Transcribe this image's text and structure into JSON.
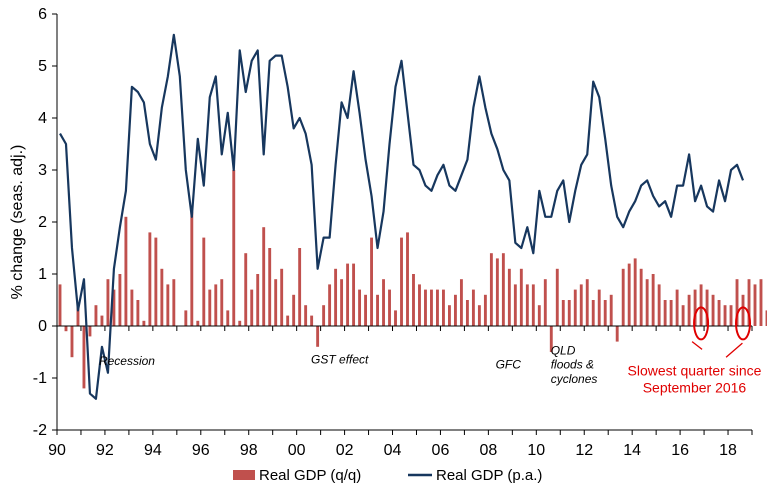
{
  "chart_data": {
    "type": "bar+line",
    "ylabel": "% change (seas. adj.)",
    "ylim": [
      -2,
      6
    ],
    "yticks": [
      "-2",
      "-1",
      "0",
      "1",
      "2",
      "3",
      "4",
      "5",
      "6"
    ],
    "xlim": [
      1990.0,
      2019.0
    ],
    "xticks": [
      {
        "label": "90",
        "x": 1990
      },
      {
        "label": "92",
        "x": 1992
      },
      {
        "label": "94",
        "x": 1994
      },
      {
        "label": "96",
        "x": 1996
      },
      {
        "label": "98",
        "x": 1998
      },
      {
        "label": "00",
        "x": 2000
      },
      {
        "label": "02",
        "x": 2002
      },
      {
        "label": "04",
        "x": 2004
      },
      {
        "label": "06",
        "x": 2006
      },
      {
        "label": "08",
        "x": 2008
      },
      {
        "label": "10",
        "x": 2010
      },
      {
        "label": "12",
        "x": 2012
      },
      {
        "label": "14",
        "x": 2014
      },
      {
        "label": "16",
        "x": 2016
      },
      {
        "label": "18",
        "x": 2018
      }
    ],
    "start_year": 1990,
    "grid": false,
    "legend_position": "bottom",
    "series": [
      {
        "name": "Real GDP (q/q)",
        "kind": "bar",
        "color": "#c0504d",
        "values": [
          0.8,
          -0.1,
          -0.6,
          0.4,
          -1.2,
          -0.2,
          0.4,
          0.2,
          0.9,
          0.7,
          1.0,
          2.1,
          0.7,
          0.5,
          0.1,
          1.8,
          1.7,
          1.1,
          0.8,
          0.9,
          0.0,
          0.3,
          2.2,
          0.1,
          1.7,
          0.7,
          0.8,
          0.9,
          0.3,
          3.0,
          0.1,
          1.4,
          0.7,
          1.0,
          1.9,
          1.5,
          0.9,
          1.1,
          0.2,
          0.6,
          1.5,
          0.4,
          0.2,
          -0.4,
          0.4,
          0.8,
          1.1,
          0.9,
          1.2,
          1.2,
          0.7,
          0.6,
          1.7,
          0.6,
          0.9,
          0.7,
          0.3,
          1.7,
          1.8,
          1.0,
          0.8,
          0.7,
          0.7,
          0.7,
          0.7,
          0.4,
          0.6,
          0.9,
          0.5,
          0.7,
          0.4,
          0.6,
          1.4,
          1.3,
          1.4,
          1.1,
          0.8,
          1.1,
          0.8,
          0.8,
          0.4,
          0.9,
          -0.5,
          1.1,
          0.5,
          0.5,
          0.7,
          0.8,
          0.9,
          0.5,
          0.7,
          0.5,
          0.6,
          -0.3,
          1.1,
          1.2,
          1.3,
          1.1,
          0.9,
          1.0,
          0.8,
          0.5,
          0.5,
          0.7,
          0.4,
          0.6,
          0.7,
          0.8,
          0.7,
          0.6,
          0.5,
          0.4,
          0.4,
          0.9,
          0.6,
          0.9,
          0.8,
          0.9,
          0.3,
          1.0,
          0.9,
          0.0,
          1.0,
          0.4,
          0.7,
          0.6,
          0.5,
          1.0,
          0.9,
          0.3
        ]
      },
      {
        "name": "Real GDP (p.a.)",
        "kind": "line",
        "color": "#17375e",
        "values": [
          3.7,
          3.5,
          1.5,
          0.3,
          0.9,
          -1.3,
          -1.4,
          -0.4,
          -0.9,
          1.1,
          1.9,
          2.6,
          4.6,
          4.5,
          4.3,
          3.5,
          3.2,
          4.2,
          4.8,
          5.6,
          4.8,
          3.0,
          2.1,
          3.6,
          2.7,
          4.4,
          4.8,
          3.3,
          4.1,
          3.0,
          5.3,
          4.5,
          5.1,
          5.3,
          3.3,
          5.1,
          5.2,
          5.2,
          4.6,
          3.8,
          4.0,
          3.7,
          3.1,
          1.1,
          1.7,
          1.7,
          3.1,
          4.3,
          4.0,
          4.9,
          4.1,
          3.2,
          2.5,
          1.5,
          2.2,
          3.5,
          4.6,
          5.1,
          4.1,
          3.1,
          3.0,
          2.7,
          2.6,
          2.9,
          3.1,
          2.7,
          2.6,
          2.9,
          3.2,
          4.2,
          4.8,
          4.2,
          3.7,
          3.4,
          3.0,
          2.8,
          1.6,
          1.5,
          1.9,
          1.4,
          2.6,
          2.1,
          2.1,
          2.6,
          2.8,
          2.0,
          2.6,
          3.1,
          3.3,
          4.7,
          4.4,
          3.6,
          2.7,
          2.1,
          1.9,
          2.2,
          2.4,
          2.7,
          2.8,
          2.5,
          2.3,
          2.4,
          2.1,
          2.7,
          2.7,
          3.3,
          2.4,
          2.7,
          2.3,
          2.2,
          2.8,
          2.4,
          3.0,
          3.1,
          2.8
        ]
      }
    ],
    "annotations": [
      {
        "text": "Recession",
        "x": 1991.75,
        "y": -0.75
      },
      {
        "text": "GST effect",
        "x": 2000.6,
        "y": -0.72
      },
      {
        "text": "GFC",
        "x": 2008.3,
        "y": -0.82
      },
      {
        "text": "QLD",
        "x": 2010.6,
        "y": -0.55
      },
      {
        "text": "floods &",
        "x": 2010.6,
        "y": -0.82
      },
      {
        "text": "cyclones",
        "x": 2010.6,
        "y": -1.1
      }
    ],
    "callout": {
      "lines": [
        "Slowest quarter since",
        "September 2016"
      ],
      "color": "#e00000",
      "highlighted_quarters": [
        2016.75,
        2018.5
      ]
    }
  }
}
